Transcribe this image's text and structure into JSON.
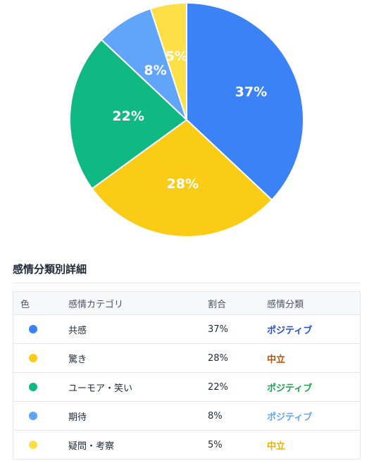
{
  "chart_data": {
    "type": "pie",
    "slices": [
      {
        "label": "共感",
        "value": 37,
        "text": "37%",
        "color": "#3b82f6"
      },
      {
        "label": "驚き",
        "value": 28,
        "text": "28%",
        "color": "#facc15"
      },
      {
        "label": "ユーモア・笑い",
        "value": 22,
        "text": "22%",
        "color": "#10b981"
      },
      {
        "label": "期待",
        "value": 8,
        "text": "8%",
        "color": "#60a5fa"
      },
      {
        "label": "疑問・考察",
        "value": 5,
        "text": "5%",
        "color": "#fde047"
      }
    ]
  },
  "table": {
    "title": "感情分類別詳細",
    "headers": {
      "color": "色",
      "category": "感情カテゴリ",
      "ratio": "割合",
      "classification": "感情分類"
    },
    "rows": [
      {
        "category": "共感",
        "ratio": "37%",
        "classification": "ポジティブ",
        "dot_color": "#3b82f6",
        "class_color": "#1d4ed8"
      },
      {
        "category": "驚き",
        "ratio": "28%",
        "classification": "中立",
        "dot_color": "#facc15",
        "class_color": "#b45309"
      },
      {
        "category": "ユーモア・笑い",
        "ratio": "22%",
        "classification": "ポジティブ",
        "dot_color": "#10b981",
        "class_color": "#16a34a"
      },
      {
        "category": "期待",
        "ratio": "8%",
        "classification": "ポジティブ",
        "dot_color": "#60a5fa",
        "class_color": "#60a5fa"
      },
      {
        "category": "疑問・考察",
        "ratio": "5%",
        "classification": "中立",
        "dot_color": "#fde047",
        "class_color": "#eab308"
      }
    ]
  }
}
